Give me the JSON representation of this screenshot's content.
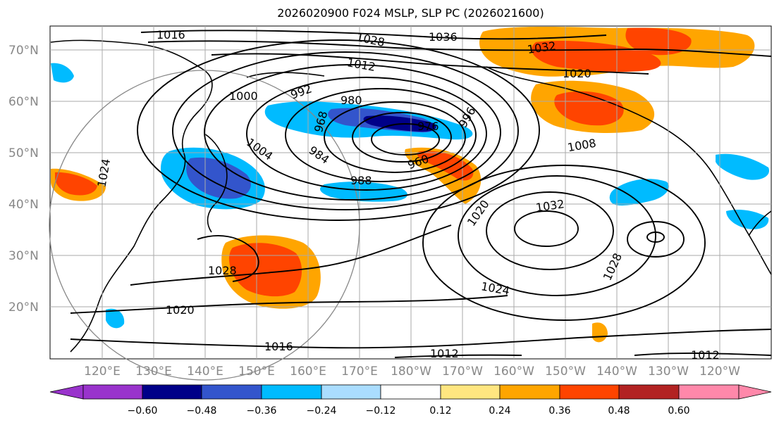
{
  "title": "2026020900 F024 MSLP, SLP PC (2026021600)",
  "lat_labels": [
    "70°N",
    "60°N",
    "50°N",
    "40°N",
    "30°N",
    "20°N"
  ],
  "lon_labels": [
    "120°E",
    "130°E",
    "140°E",
    "150°E",
    "160°E",
    "170°E",
    "180°W",
    "170°W",
    "160°W",
    "150°W",
    "140°W",
    "130°W",
    "120°W"
  ],
  "colorbar": {
    "ticks": [
      "−0.60",
      "−0.48",
      "−0.36",
      "−0.24",
      "−0.12",
      "0.12",
      "0.24",
      "0.36",
      "0.48",
      "0.60"
    ],
    "colors": [
      "#9933cc",
      "#000088",
      "#3355cc",
      "#00bbff",
      "#aaddff",
      "#ffffff",
      "#ffe680",
      "#ffa500",
      "#ff4400",
      "#b22222",
      "#ff88aa"
    ]
  },
  "isobar_labels": [
    "1016",
    "1028",
    "1036",
    "1032",
    "1020",
    "1012",
    "1000",
    "992",
    "980",
    "996",
    "1004",
    "968",
    "976",
    "984",
    "988",
    "960",
    "1008",
    "1024",
    "1020",
    "1032",
    "1028",
    "1024",
    "1028",
    "1020",
    "1016",
    "1012",
    "1012"
  ]
}
